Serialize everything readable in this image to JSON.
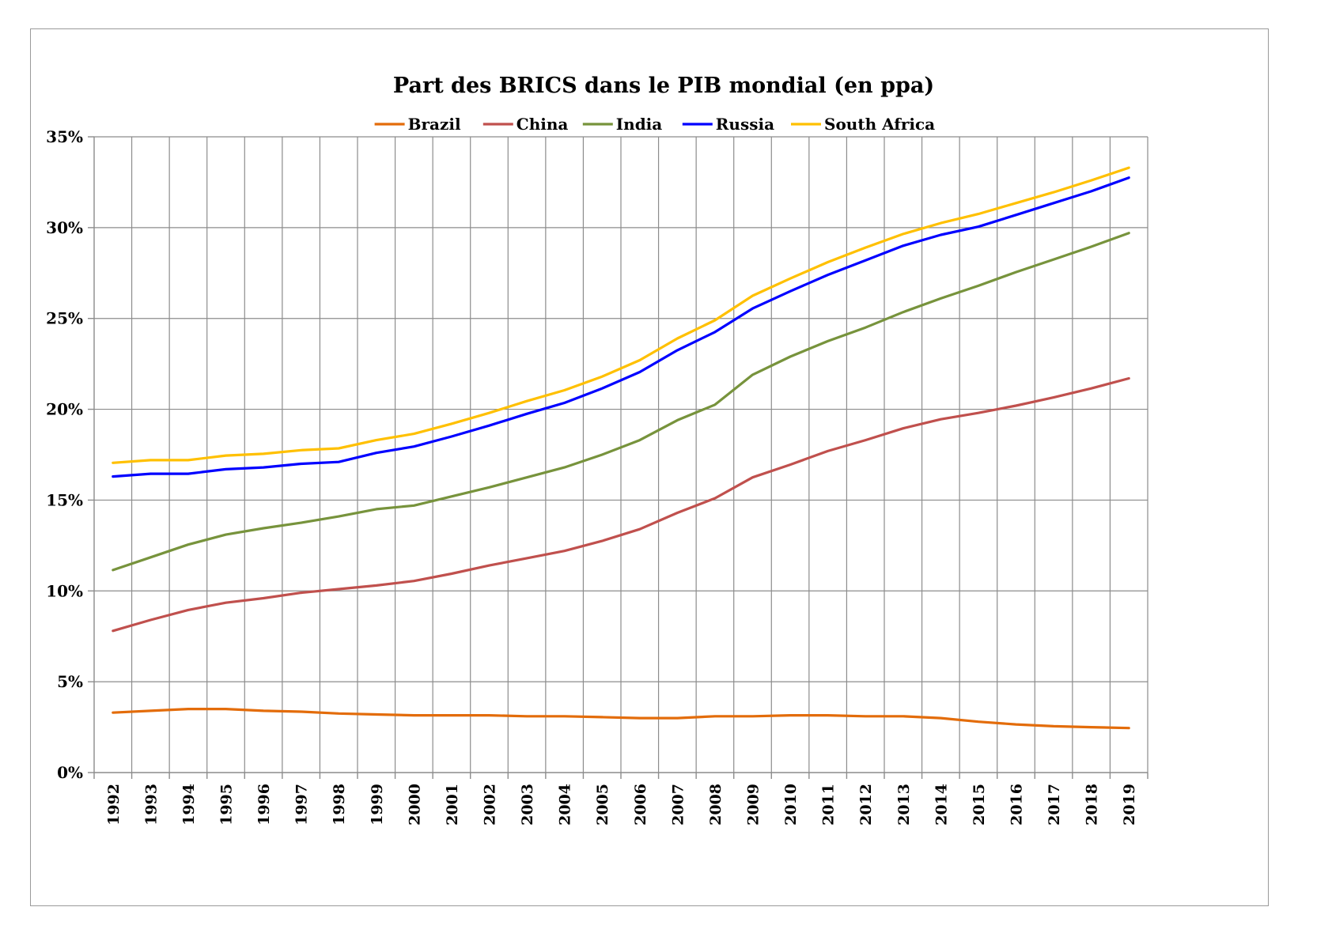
{
  "chart_data": {
    "type": "line",
    "title": "Part des BRICS dans le PIB mondial (en ppa)",
    "xlabel": "",
    "ylabel": "",
    "ylim": [
      0,
      35
    ],
    "y_unit": "%",
    "y_ticks": [
      "0%",
      "5%",
      "10%",
      "15%",
      "20%",
      "25%",
      "30%",
      "35%"
    ],
    "categories": [
      "1992",
      "1993",
      "1994",
      "1995",
      "1996",
      "1997",
      "1998",
      "1999",
      "2000",
      "2001",
      "2002",
      "2003",
      "2004",
      "2005",
      "2006",
      "2007",
      "2008",
      "2009",
      "2010",
      "2011",
      "2012",
      "2013",
      "2014",
      "2015",
      "2016",
      "2017",
      "2018",
      "2019"
    ],
    "grid": true,
    "legend_position": "top",
    "series": [
      {
        "name": "Brazil",
        "color": "#E36C0A",
        "values": [
          3.3,
          3.4,
          3.5,
          3.5,
          3.4,
          3.35,
          3.25,
          3.2,
          3.15,
          3.15,
          3.15,
          3.1,
          3.1,
          3.05,
          3.0,
          3.0,
          3.1,
          3.1,
          3.15,
          3.15,
          3.1,
          3.1,
          3.0,
          2.8,
          2.65,
          2.55,
          2.5,
          2.45
        ]
      },
      {
        "name": "China",
        "color": "#C0504D",
        "values": [
          7.8,
          8.4,
          8.95,
          9.35,
          9.6,
          9.9,
          10.1,
          10.3,
          10.55,
          10.95,
          11.4,
          11.8,
          12.2,
          12.75,
          13.4,
          14.3,
          15.1,
          16.25,
          16.95,
          17.7,
          18.3,
          18.95,
          19.45,
          19.8,
          20.2,
          20.65,
          21.15,
          21.7
        ]
      },
      {
        "name": "India",
        "color": "#77933C",
        "values": [
          11.15,
          11.85,
          12.55,
          13.1,
          13.45,
          13.75,
          14.1,
          14.5,
          14.7,
          15.2,
          15.7,
          16.25,
          16.8,
          17.5,
          18.3,
          19.4,
          20.25,
          21.9,
          22.9,
          23.75,
          24.5,
          25.35,
          26.1,
          26.8,
          27.55,
          28.25,
          28.95,
          29.7
        ]
      },
      {
        "name": "Russia",
        "color": "#0000FF",
        "values": [
          16.3,
          16.45,
          16.45,
          16.7,
          16.8,
          17.0,
          17.1,
          17.6,
          17.95,
          18.5,
          19.1,
          19.75,
          20.35,
          21.15,
          22.05,
          23.25,
          24.25,
          25.55,
          26.5,
          27.4,
          28.2,
          29.0,
          29.6,
          30.05,
          30.7,
          31.35,
          32.0,
          32.75
        ]
      },
      {
        "name": "South Africa",
        "color": "#FFC000",
        "values": [
          17.05,
          17.2,
          17.2,
          17.45,
          17.55,
          17.75,
          17.85,
          18.3,
          18.65,
          19.2,
          19.8,
          20.45,
          21.05,
          21.8,
          22.7,
          23.9,
          24.9,
          26.25,
          27.2,
          28.1,
          28.9,
          29.65,
          30.25,
          30.75,
          31.35,
          31.95,
          32.6,
          33.3
        ]
      }
    ]
  }
}
